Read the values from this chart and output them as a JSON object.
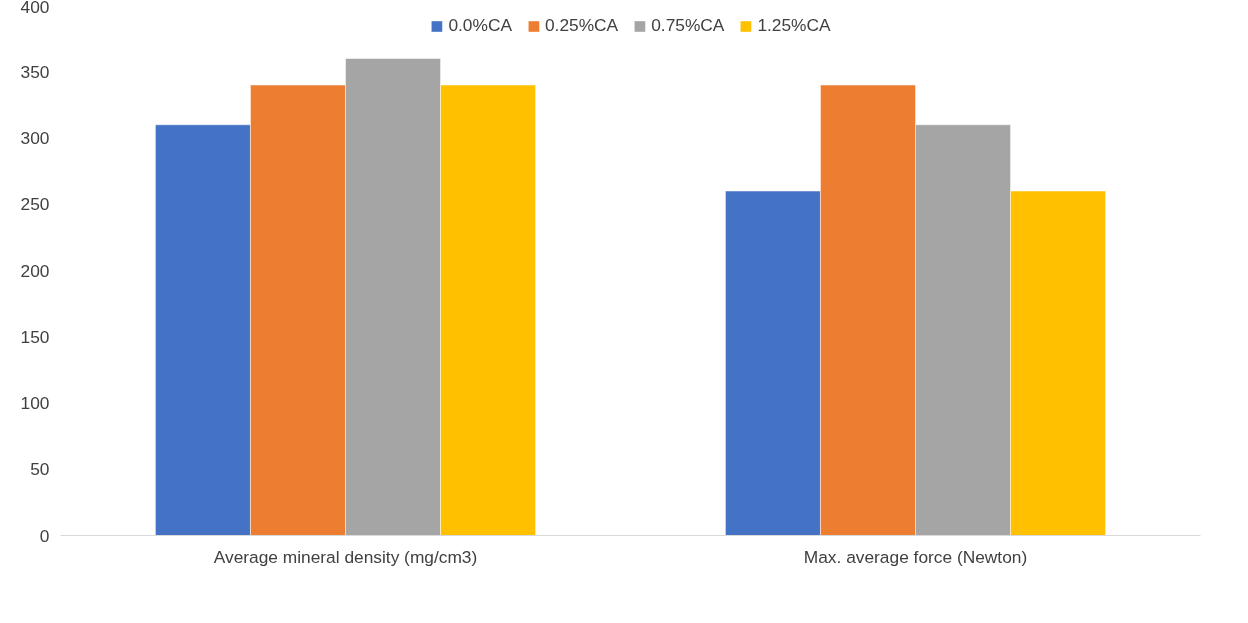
{
  "chart_data": {
    "type": "bar",
    "categories": [
      "Average mineral density (mg/cm3)",
      "Max. average force (Newton)"
    ],
    "series": [
      {
        "name": "0.0%CA",
        "color": "#4472c4",
        "values": [
          310,
          260
        ]
      },
      {
        "name": "0.25%CA",
        "color": "#ed7d31",
        "values": [
          340,
          340
        ]
      },
      {
        "name": "0.75%CA",
        "color": "#a5a5a5",
        "values": [
          360,
          310
        ]
      },
      {
        "name": "1.25%CA",
        "color": "#ffc000",
        "values": [
          340,
          260
        ]
      }
    ],
    "ylim": [
      0,
      400
    ],
    "yticks": [
      0,
      50,
      100,
      150,
      200,
      250,
      300,
      350,
      400
    ],
    "grid": false,
    "legend": "top"
  }
}
